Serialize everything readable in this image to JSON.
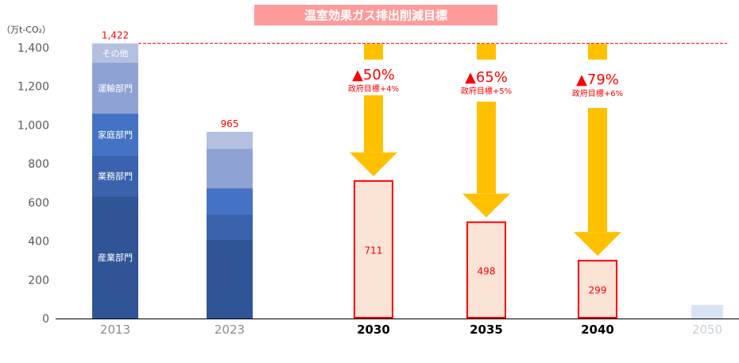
{
  "chart_data": {
    "type": "bar",
    "title": "温室効果ガス排出削減目標",
    "ylabel": "（万t-CO₂）",
    "ylim": [
      0,
      1400
    ],
    "yticks": [
      "0",
      "200",
      "400",
      "600",
      "800",
      "1,000",
      "1,200",
      "1,400"
    ],
    "grid": false,
    "categories": [
      "2013",
      "2023",
      "2030",
      "2035",
      "2040",
      "2050"
    ],
    "stacked_series": [
      {
        "name": "産業部門",
        "color": "#2f5597",
        "values": [
          632,
          410,
          null,
          null,
          null,
          null
        ]
      },
      {
        "name": "業務部門",
        "color": "#3a62ad",
        "values": [
          210,
          128,
          null,
          null,
          null,
          null
        ]
      },
      {
        "name": "家庭部門",
        "color": "#4472c4",
        "values": [
          217,
          135,
          null,
          null,
          null,
          null
        ]
      },
      {
        "name": "運輸部門",
        "color": "#8fa2d4",
        "values": [
          263,
          205,
          null,
          null,
          null,
          null
        ]
      },
      {
        "name": "その他",
        "color": "#b4c0e0",
        "values": [
          100,
          87,
          null,
          null,
          null,
          null
        ]
      }
    ],
    "totals": [
      {
        "category": "2013",
        "value": 1422,
        "label": "1,422"
      },
      {
        "category": "2023",
        "value": 965,
        "label": "965"
      }
    ],
    "targets": [
      {
        "category": "2030",
        "value": 711,
        "label": "711",
        "reduction": "▲50%",
        "note": "政府目標+4%"
      },
      {
        "category": "2035",
        "value": 498,
        "label": "498",
        "reduction": "▲65%",
        "note": "政府目標+5%"
      },
      {
        "category": "2040",
        "value": 299,
        "label": "299",
        "reduction": "▲79%",
        "note": "政府目標+6%"
      }
    ],
    "future_bar": {
      "category": "2050",
      "value": 70
    },
    "reference_line": {
      "value": 1422,
      "style": "dashed",
      "color": "#ff0000"
    },
    "colors": {
      "title_bg": "#ff9b9b",
      "target_fill": "#fbe3d6",
      "target_border": "#ff0000",
      "arrow": "#ffc000",
      "label_red": "#ff0000",
      "future_bar": "#dae3f3"
    }
  }
}
